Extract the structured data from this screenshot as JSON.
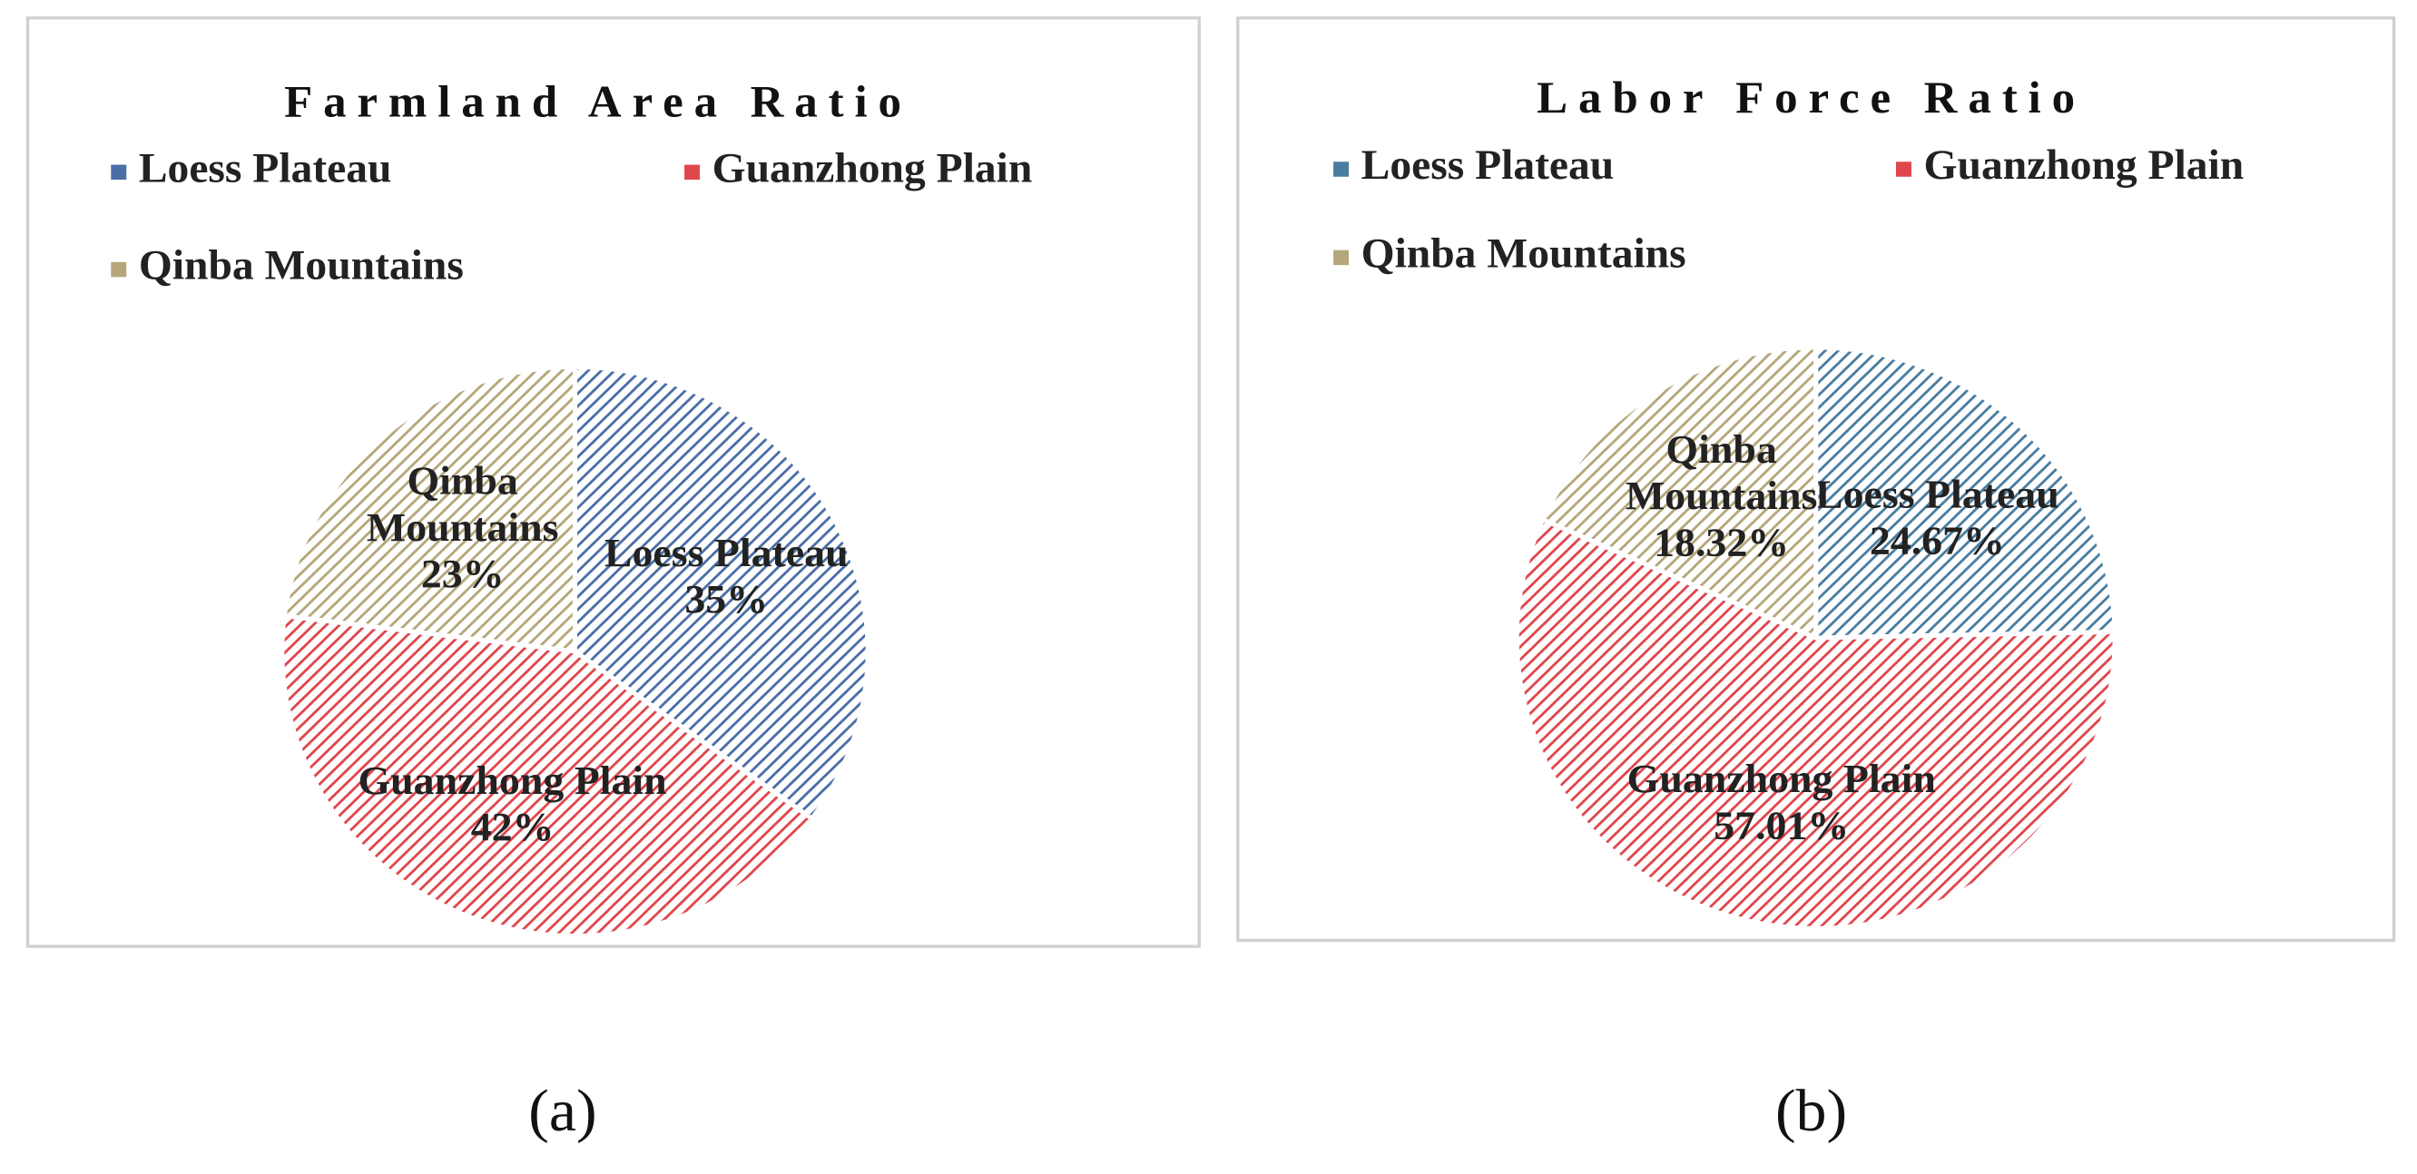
{
  "chart_data": [
    {
      "type": "pie",
      "title": "Farmland Area Ratio",
      "caption": "(a)",
      "categories": [
        "Loess Plateau",
        "Guanzhong Plain",
        "Qinba Mountains"
      ],
      "values": [
        35,
        42,
        23
      ],
      "value_labels": [
        "35%",
        "42%",
        "23%"
      ],
      "colors": [
        "#4a6fa5",
        "#e0474c",
        "#b5a77a"
      ],
      "legend": "top"
    },
    {
      "type": "pie",
      "title": "Labor Force Ratio",
      "caption": "(b)",
      "categories": [
        "Loess Plateau",
        "Guanzhong Plain",
        "Qinba Mountains"
      ],
      "values": [
        24.67,
        57.01,
        18.32
      ],
      "value_labels": [
        "24.67%",
        "57.01%",
        "18.32%"
      ],
      "colors": [
        "#4a7da0",
        "#e0474c",
        "#b5a77a"
      ],
      "legend": "top"
    }
  ]
}
